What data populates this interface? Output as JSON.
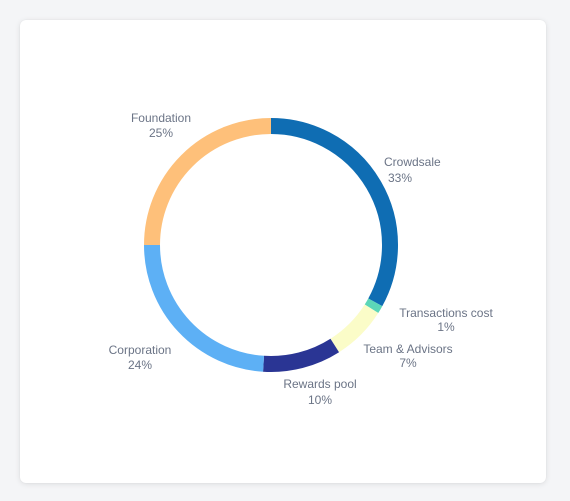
{
  "chart_data": {
    "type": "pie",
    "style": "donut",
    "title": "",
    "slices": [
      {
        "name": "Crowdsale",
        "percent_label": "33%",
        "value": 33,
        "color": "#0f6db3"
      },
      {
        "name": "Transactions cost",
        "percent_label": "1%",
        "value": 1,
        "color": "#5cd6b8"
      },
      {
        "name": "Team & Advisors",
        "percent_label": "7%",
        "value": 7,
        "color": "#fbfcc8"
      },
      {
        "name": "Rewards pool",
        "percent_label": "10%",
        "value": 10,
        "color": "#2a3594"
      },
      {
        "name": "Corporation",
        "percent_label": "24%",
        "value": 24,
        "color": "#5db0f5"
      },
      {
        "name": "Foundation",
        "percent_label": "25%",
        "value": 25,
        "color": "#fec07a"
      }
    ],
    "start": "top",
    "direction": "clockwise",
    "legend": "none"
  }
}
